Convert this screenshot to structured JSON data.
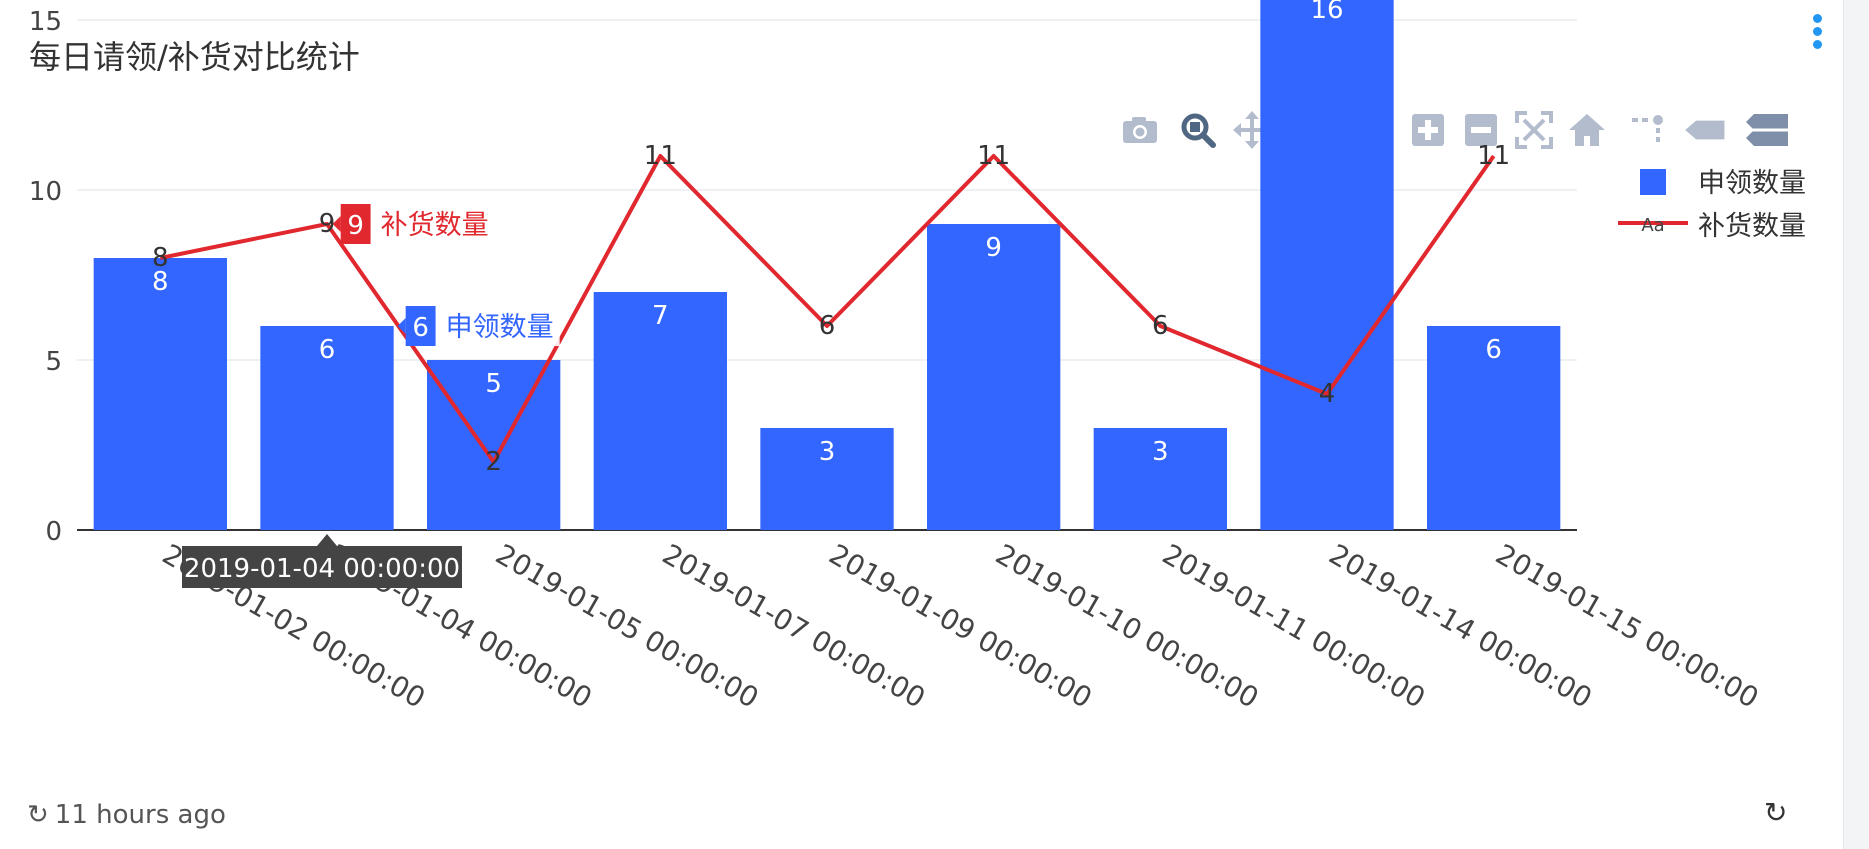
{
  "title": "每日请领/补货对比统计",
  "footer": {
    "updated": "11 hours ago",
    "refresh_icon": "refresh-icon"
  },
  "modebar": {
    "icons": [
      "camera-icon",
      "zoom-icon",
      "pan-icon",
      "box-select-icon",
      "lasso-icon",
      "zoom-in-icon",
      "zoom-out-icon",
      "autoscale-icon",
      "reset-axes-icon",
      "spike-lines-icon",
      "hover-closest-icon",
      "hover-compare-icon"
    ]
  },
  "colors": {
    "bar": "#3366ff",
    "line": "#e0282e",
    "grid": "#e8ebf0",
    "axis": "#444444",
    "tooltip_bg": "#444444"
  },
  "chart_data": {
    "type": "bar",
    "categories": [
      "2019-01-02 00:00:00",
      "2019-01-04 00:00:00",
      "2019-01-05 00:00:00",
      "2019-01-07 00:00:00",
      "2019-01-09 00:00:00",
      "2019-01-10 00:00:00",
      "2019-01-11 00:00:00",
      "2019-01-14 00:00:00",
      "2019-01-15 00:00:00"
    ],
    "series": [
      {
        "name": "申领数量",
        "type": "bar",
        "values": [
          8,
          6,
          5,
          7,
          3,
          9,
          3,
          16,
          6
        ]
      },
      {
        "name": "补货数量",
        "type": "line",
        "values": [
          8,
          9,
          2,
          11,
          6,
          11,
          6,
          4,
          11
        ]
      }
    ],
    "yticks": [
      0,
      5,
      10,
      15
    ],
    "ylim": [
      0,
      16.5
    ],
    "grid": true,
    "legend_position": "top-right",
    "legend_line_marker": "Aa",
    "hover": {
      "category": "2019-01-04 00:00:00",
      "labels": [
        {
          "series": "补货数量",
          "value": "9"
        },
        {
          "series": "申领数量",
          "value": "6"
        }
      ]
    }
  }
}
